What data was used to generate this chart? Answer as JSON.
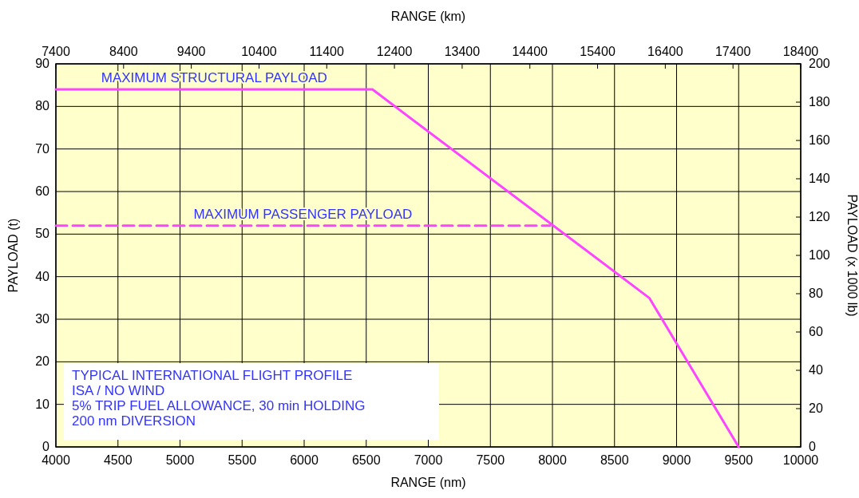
{
  "chart_data": {
    "type": "line",
    "xlabel": "RANGE (nm)",
    "x2label": "RANGE (km)",
    "ylabel": "PAYLOAD (t)",
    "y2label": "PAYLOAD (x 1000 lb)",
    "xlim": [
      4000,
      10000
    ],
    "xticks": [
      4000,
      4500,
      5000,
      5500,
      6000,
      6500,
      7000,
      7500,
      8000,
      8500,
      9000,
      9500,
      10000
    ],
    "x2lim": [
      7400,
      18400
    ],
    "x2ticks": [
      7400,
      8400,
      9400,
      10400,
      11400,
      12400,
      13400,
      14400,
      15400,
      16400,
      17400,
      18400
    ],
    "ylim": [
      0,
      90
    ],
    "yticks": [
      0,
      10,
      20,
      30,
      40,
      50,
      60,
      70,
      80,
      90
    ],
    "y2lim": [
      0,
      200
    ],
    "y2ticks": [
      0,
      20,
      40,
      60,
      80,
      100,
      120,
      140,
      160,
      180,
      200
    ],
    "grid": true,
    "series": [
      {
        "name": "MAXIMUM STRUCTURAL PAYLOAD",
        "color": "#ff44ff",
        "line_style": "solid",
        "x": [
          4000,
          6550,
          8780,
          9500
        ],
        "values": [
          84,
          84,
          35,
          0
        ]
      },
      {
        "name": "MAXIMUM PASSENGER PAYLOAD",
        "color": "#ff44ff",
        "line_style": "dashed",
        "x": [
          4000,
          7980
        ],
        "values": [
          52,
          52
        ]
      }
    ],
    "annotations": [
      "TYPICAL INTERNATIONAL FLIGHT PROFILE",
      "ISA / NO WIND",
      "5% TRIP FUEL ALLOWANCE, 30 min HOLDING",
      "200 nm DIVERSION"
    ]
  }
}
